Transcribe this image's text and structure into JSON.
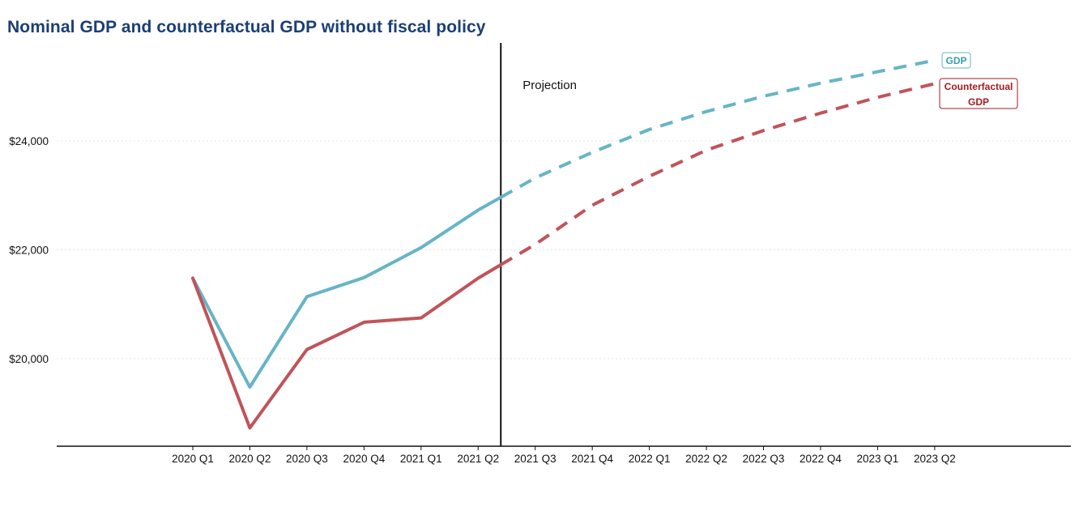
{
  "title": "Nominal GDP and counterfactual  GDP without fiscal policy",
  "chart_data": {
    "type": "line",
    "title": "Nominal GDP and counterfactual  GDP without fiscal policy",
    "xlabel": "",
    "ylabel": "",
    "categories": [
      "2020 Q1",
      "2020 Q2",
      "2020 Q3",
      "2020 Q4",
      "2021 Q1",
      "2021 Q2",
      "2021 Q3",
      "2021 Q4",
      "2022 Q1",
      "2022 Q2",
      "2022 Q3",
      "2022 Q4",
      "2023 Q1",
      "2023 Q2"
    ],
    "y_ticks": [
      20000,
      22000,
      24000
    ],
    "y_tick_labels": [
      "$20,000",
      "$22,000",
      "$24,000"
    ],
    "ylim": [
      18400,
      25700
    ],
    "grid": true,
    "projection_label": "Projection",
    "projection_start": "2021 Q2",
    "series": [
      {
        "name": "GDP",
        "color": "#66b5c5",
        "label_border": "#66b5c5",
        "values": [
          21480,
          19480,
          21140,
          21490,
          22040,
          22730,
          23320,
          23790,
          24210,
          24540,
          24820,
          25060,
          25270,
          25480
        ]
      },
      {
        "name": "Counterfactual GDP",
        "color": "#c0545a",
        "label_color": "#a51b22",
        "values": [
          21480,
          18730,
          20170,
          20670,
          20750,
          21480,
          22100,
          22820,
          23350,
          23830,
          24190,
          24510,
          24800,
          25050
        ]
      }
    ]
  }
}
